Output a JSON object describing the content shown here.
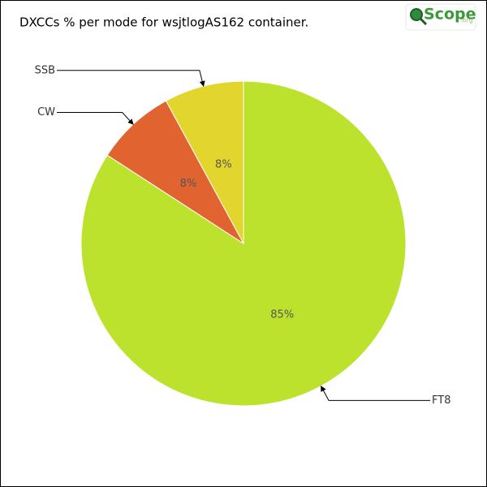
{
  "chart_data": {
    "type": "pie",
    "title": "DXCCs % per mode for wsjtlogAS162 container.",
    "categories": [
      "FT8",
      "CW",
      "SSB"
    ],
    "values": [
      85,
      8,
      8
    ],
    "value_labels": [
      "85%",
      "8%",
      "8%"
    ],
    "colors": [
      "#bde22e",
      "#e06330",
      "#e2d52e"
    ]
  },
  "logo": {
    "text": "Scope",
    "suffix": ".org"
  }
}
